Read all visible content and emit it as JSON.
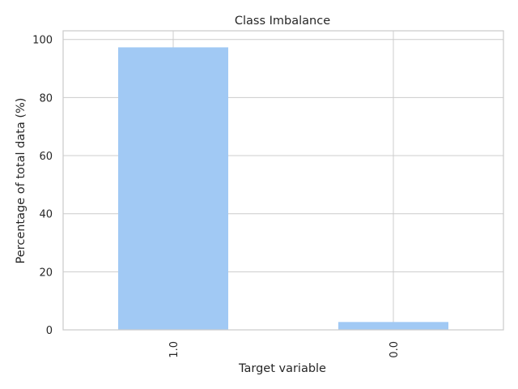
{
  "chart_data": {
    "type": "bar",
    "title": "Class Imbalance",
    "xlabel": "Target variable",
    "ylabel": "Percentage of total data (%)",
    "categories": [
      "1.0",
      "0.0"
    ],
    "values": [
      97.3,
      2.7
    ],
    "ylim": [
      0,
      103
    ],
    "yticks": [
      0,
      20,
      40,
      60,
      80,
      100
    ],
    "grid": true,
    "bar_color": "#a1c9f4",
    "grid_color": "#cccccc"
  }
}
